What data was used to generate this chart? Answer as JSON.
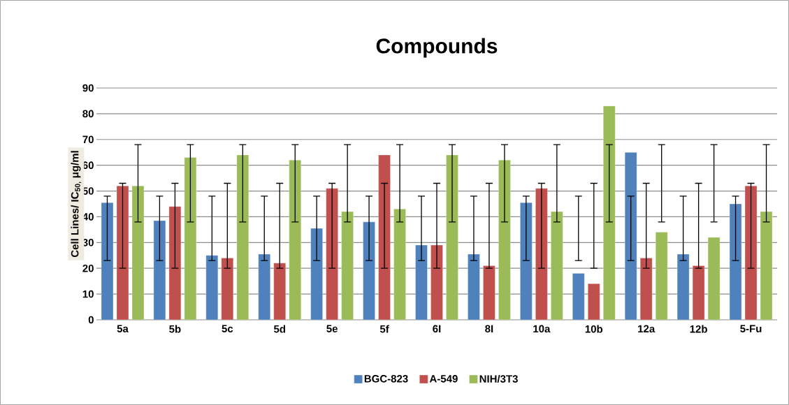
{
  "chart_data": {
    "type": "bar",
    "title": "Compounds",
    "ylabel": "Cell Lines/ IC$_{50,}$ μg/ml",
    "categories": [
      "5a",
      "5b",
      "5c",
      "5d",
      "5e",
      "5f",
      "6I",
      "8I",
      "10a",
      "10b",
      "12a",
      "12b",
      "5-Fu"
    ],
    "series": [
      {
        "name": "BGC-823",
        "color": "#4f81bd",
        "values": [
          45.5,
          38.5,
          25,
          25.5,
          35.5,
          38,
          29,
          25.5,
          45.5,
          18,
          65,
          25.5,
          45
        ],
        "errors": [
          [
            23,
            48
          ],
          [
            23,
            48
          ],
          [
            23,
            48
          ],
          [
            23,
            48
          ],
          [
            23,
            48
          ],
          [
            23,
            48
          ],
          [
            23,
            48
          ],
          [
            23,
            48
          ],
          [
            23,
            48
          ],
          [
            23,
            48
          ],
          [
            23,
            48
          ],
          [
            23,
            48
          ],
          [
            23,
            48
          ]
        ]
      },
      {
        "name": "A-549",
        "color": "#c0504d",
        "values": [
          52,
          44,
          24,
          22,
          51,
          64,
          29,
          21,
          51,
          14,
          24,
          21,
          52
        ],
        "errors": [
          [
            20,
            53
          ],
          [
            20,
            53
          ],
          [
            20,
            53
          ],
          [
            20,
            53
          ],
          [
            20,
            53
          ],
          [
            20,
            53
          ],
          [
            20,
            53
          ],
          [
            20,
            53
          ],
          [
            20,
            53
          ],
          [
            20,
            53
          ],
          [
            20,
            53
          ],
          [
            20,
            53
          ],
          [
            20,
            53
          ]
        ]
      },
      {
        "name": "NIH/3T3",
        "color": "#9bbb59",
        "values": [
          52,
          63,
          64,
          62,
          42,
          43,
          64,
          62,
          42,
          83,
          34,
          32,
          42
        ],
        "errors": [
          [
            38,
            68
          ],
          [
            38,
            68
          ],
          [
            38,
            68
          ],
          [
            38,
            68
          ],
          [
            38,
            68
          ],
          [
            38,
            68
          ],
          [
            38,
            68
          ],
          [
            38,
            68
          ],
          [
            38,
            68
          ],
          [
            38,
            68
          ],
          [
            38,
            68
          ],
          [
            38,
            68
          ],
          [
            38,
            68
          ]
        ]
      }
    ],
    "ylim": [
      0,
      90
    ],
    "yticks": [
      0,
      10,
      20,
      30,
      40,
      50,
      60,
      70,
      80,
      90
    ],
    "grid": "y",
    "legend": "bottom"
  }
}
